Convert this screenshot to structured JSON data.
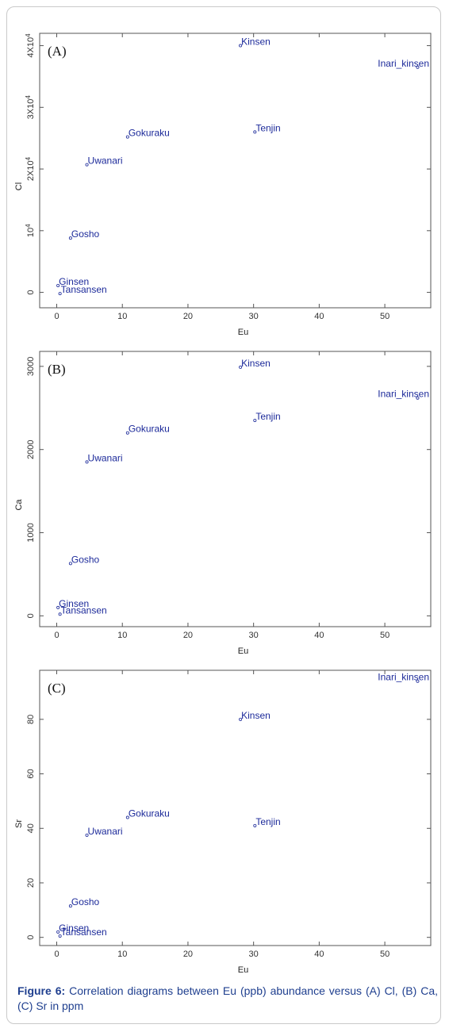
{
  "caption": {
    "bold": "Figure 6:",
    "text": " Correlation diagrams between Eu (ppb) abundance versus (A) Cl, (B) Ca, (C) Sr in ppm"
  },
  "chart_data": [
    {
      "type": "scatter",
      "panel_label": "(A)",
      "xlabel": "Eu",
      "ylabel": "Cl",
      "xlim": [
        -2.6,
        57
      ],
      "ylim": [
        -2500,
        42000
      ],
      "xticks": [
        0,
        10,
        20,
        30,
        40,
        50
      ],
      "yticks": [
        0,
        10000,
        20000,
        30000,
        40000
      ],
      "ytick_labels": [
        "0",
        "10^4",
        "2X10^4",
        "3X10^4",
        "4X10^4"
      ],
      "points": [
        {
          "label": "Kinsen",
          "x": 28,
          "y": 40000
        },
        {
          "label": "Inari_kinsen",
          "x": 55,
          "y": 36500
        },
        {
          "label": "Tenjin",
          "x": 30.2,
          "y": 26000
        },
        {
          "label": "Gokuraku",
          "x": 10.8,
          "y": 25200
        },
        {
          "label": "Uwanari",
          "x": 4.6,
          "y": 20700
        },
        {
          "label": "Gosho",
          "x": 2.1,
          "y": 8800
        },
        {
          "label": "Ginsen",
          "x": 0.2,
          "y": 1100
        },
        {
          "label": "Tansansen",
          "x": 0.5,
          "y": -200
        }
      ]
    },
    {
      "type": "scatter",
      "panel_label": "(B)",
      "xlabel": "Eu",
      "ylabel": "Ca",
      "xlim": [
        -2.6,
        57
      ],
      "ylim": [
        -130,
        3180
      ],
      "xticks": [
        0,
        10,
        20,
        30,
        40,
        50
      ],
      "yticks": [
        0,
        1000,
        2000,
        3000
      ],
      "ytick_labels": [
        "0",
        "1000",
        "2000",
        "3000"
      ],
      "points": [
        {
          "label": "Kinsen",
          "x": 28,
          "y": 2990
        },
        {
          "label": "Inari_kinsen",
          "x": 55,
          "y": 2620
        },
        {
          "label": "Tenjin",
          "x": 30.2,
          "y": 2350
        },
        {
          "label": "Gokuraku",
          "x": 10.8,
          "y": 2200
        },
        {
          "label": "Uwanari",
          "x": 4.6,
          "y": 1850
        },
        {
          "label": "Gosho",
          "x": 2.1,
          "y": 630
        },
        {
          "label": "Ginsen",
          "x": 0.2,
          "y": 100
        },
        {
          "label": "Tansansen",
          "x": 0.5,
          "y": 20
        }
      ]
    },
    {
      "type": "scatter",
      "panel_label": "(C)",
      "xlabel": "Eu",
      "ylabel": "Sr",
      "xlim": [
        -2.6,
        57
      ],
      "ylim": [
        -3,
        98
      ],
      "xticks": [
        0,
        10,
        20,
        30,
        40,
        50
      ],
      "yticks": [
        0,
        20,
        40,
        60,
        80
      ],
      "ytick_labels": [
        "0",
        "20",
        "40",
        "60",
        "80"
      ],
      "points": [
        {
          "label": "Kinsen",
          "x": 28,
          "y": 80
        },
        {
          "label": "Inari_kinsen",
          "x": 55,
          "y": 94
        },
        {
          "label": "Tenjin",
          "x": 30.2,
          "y": 41
        },
        {
          "label": "Gokuraku",
          "x": 10.8,
          "y": 44
        },
        {
          "label": "Uwanari",
          "x": 4.6,
          "y": 37.5
        },
        {
          "label": "Gosho",
          "x": 2.1,
          "y": 11.5
        },
        {
          "label": "Ginsen",
          "x": 0.2,
          "y": 2
        },
        {
          "label": "Tansansen",
          "x": 0.5,
          "y": 0.5
        }
      ]
    }
  ]
}
